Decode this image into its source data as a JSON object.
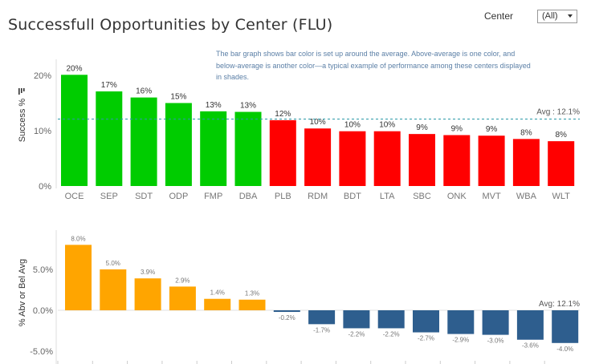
{
  "header": {
    "title": "Successfull Opportunities by Center (FLU)",
    "filter_label": "Center",
    "filter_value": "(All)"
  },
  "annotation": "The bar graph shows bar color is set up around the average. Above-average is one color, and below-average is another color—a typical example of performance among these centers displayed in shades.",
  "colors": {
    "above_top": "#00cc00",
    "below_top": "#ff0000",
    "above_bottom": "#ffa500",
    "below_bottom": "#2e5e8e",
    "avg_line": "#2a9aa8"
  },
  "chart_data": [
    {
      "type": "bar",
      "ylabel": "Success %",
      "ylim": [
        0,
        20
      ],
      "yticks": [
        "0%",
        "10%",
        "20%"
      ],
      "categories": [
        "OCE",
        "SEP",
        "SDT",
        "ODP",
        "FMP",
        "DBA",
        "PLB",
        "RDM",
        "BDT",
        "LTA",
        "SBC",
        "ONK",
        "MVT",
        "WBA",
        "WLT"
      ],
      "values": [
        20,
        17,
        16,
        15,
        13,
        13,
        12,
        10,
        10,
        10,
        9,
        9,
        9,
        8,
        8
      ],
      "plot_values": [
        20.1,
        17.1,
        16.0,
        15.0,
        13.5,
        13.4,
        11.9,
        10.4,
        9.9,
        9.9,
        9.4,
        9.2,
        9.1,
        8.5,
        8.1
      ],
      "data_labels": [
        "20%",
        "17%",
        "16%",
        "15%",
        "13%",
        "13%",
        "12%",
        "10%",
        "10%",
        "10%",
        "9%",
        "9%",
        "9%",
        "8%",
        "8%"
      ],
      "average": 12.1,
      "average_label": "Avg : 12.1%"
    },
    {
      "type": "bar",
      "ylabel": "% Abv or Bel Avg",
      "ylim": [
        -5.5,
        8.5
      ],
      "yticks": [
        "-5.0%",
        "0.0%",
        "5.0%"
      ],
      "values": [
        8.0,
        5.0,
        3.9,
        2.9,
        1.4,
        1.3,
        -0.2,
        -1.7,
        -2.2,
        -2.2,
        -2.7,
        -2.9,
        -3.0,
        -3.6,
        -4.0
      ],
      "data_labels": [
        "8.0%",
        "5.0%",
        "3.9%",
        "2.9%",
        "1.4%",
        "1.3%",
        "-0.2%",
        "-1.7%",
        "-2.2%",
        "-2.2%",
        "-2.7%",
        "-2.9%",
        "-3.0%",
        "-3.6%",
        "-4.0%"
      ],
      "average_label": "Avg: 12.1%"
    }
  ]
}
